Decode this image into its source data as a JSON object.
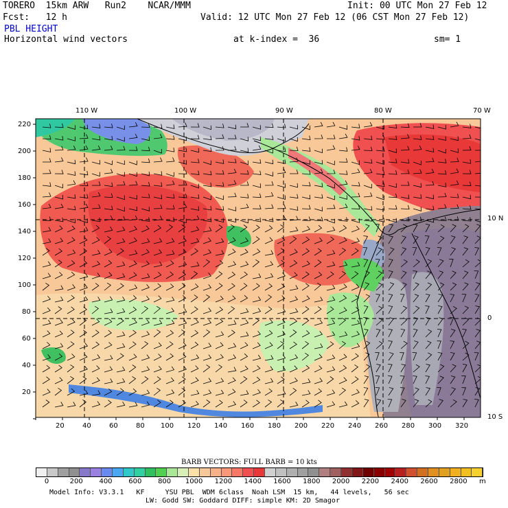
{
  "header": {
    "model": "TORERO  15km ARW   Run2    NCAR/MMM",
    "init": "Init: 00 UTC Mon 27 Feb 12",
    "fcst": "Fcst:   12 h",
    "valid": "Valid: 12 UTC Mon 27 Feb 12 (06 CST Mon 27 Feb 12)",
    "field": "PBL HEIGHT",
    "vectors": "Horizontal wind vectors",
    "kindex": "at k-index =  36",
    "sm": "sm= 1"
  },
  "map": {
    "lon_labels": [
      "110 W",
      "100 W",
      "90 W",
      "80 W",
      "70 W"
    ],
    "lat_labels": [
      "10 N",
      "0",
      "10 S"
    ],
    "y_ticks": [
      "220",
      "200",
      "180",
      "160",
      "140",
      "120",
      "100",
      "80",
      "60",
      "40",
      "20"
    ],
    "x_ticks": [
      "20",
      "40",
      "60",
      "80",
      "100",
      "120",
      "140",
      "160",
      "180",
      "200",
      "220",
      "240",
      "260",
      "280",
      "300",
      "320"
    ]
  },
  "colorbar": {
    "title": "BARB VECTORS:  FULL BARB = 10 kts",
    "labels": [
      "0",
      "200",
      "400",
      "600",
      "800",
      "1000",
      "1200",
      "1400",
      "1600",
      "1800",
      "2000",
      "2200",
      "2400",
      "2600",
      "2800"
    ],
    "unit": "m",
    "colors": [
      "#f0f0f0",
      "#c8c8c8",
      "#a0a0a0",
      "#909090",
      "#8878c8",
      "#9a80e0",
      "#6a8af0",
      "#4aa8f0",
      "#30c8c8",
      "#30d0a0",
      "#30c060",
      "#50d050",
      "#a8e898",
      "#d8f0b8",
      "#f8e0a8",
      "#f8c898",
      "#f8b088",
      "#f89878",
      "#f87868",
      "#f05050",
      "#e83838",
      "#d0d0d0",
      "#c0c0c0",
      "#b0b0b0",
      "#a0a0a0",
      "#909090",
      "#b08080",
      "#a06060",
      "#903030",
      "#801818",
      "#700000",
      "#880000",
      "#a00000",
      "#b82020",
      "#d05030",
      "#d07020",
      "#e09020",
      "#e0a020",
      "#f0b020",
      "#f0c020",
      "#f8d030"
    ]
  },
  "footer": {
    "line1": "Model Info: V3.3.1   KF     YSU PBL  WDM 6class  Noah LSM  15 km,   44 levels,   56 sec",
    "line2": "LW: Godd SW: Goddard DIFF: simple KM: 2D Smagor"
  }
}
